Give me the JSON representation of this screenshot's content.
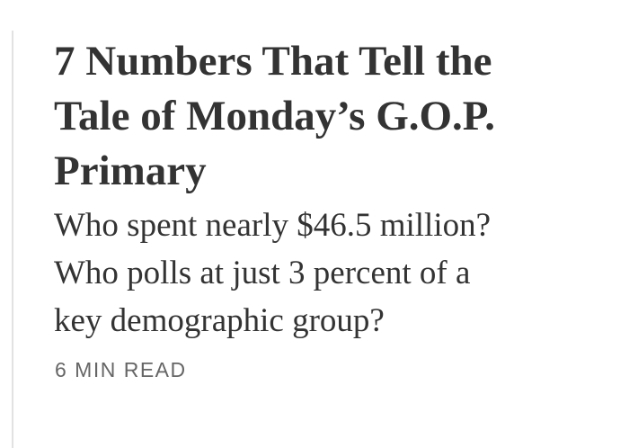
{
  "card": {
    "headline_lines": [
      "7 Numbers That Tell the",
      "Tale of Monday’s G.O.P.",
      "Primary"
    ],
    "summary_lines": [
      "Who spent nearly $46.5 million?",
      "Who polls at just 3 percent of a",
      "key demographic group?"
    ],
    "read_time": "6 MIN READ"
  }
}
